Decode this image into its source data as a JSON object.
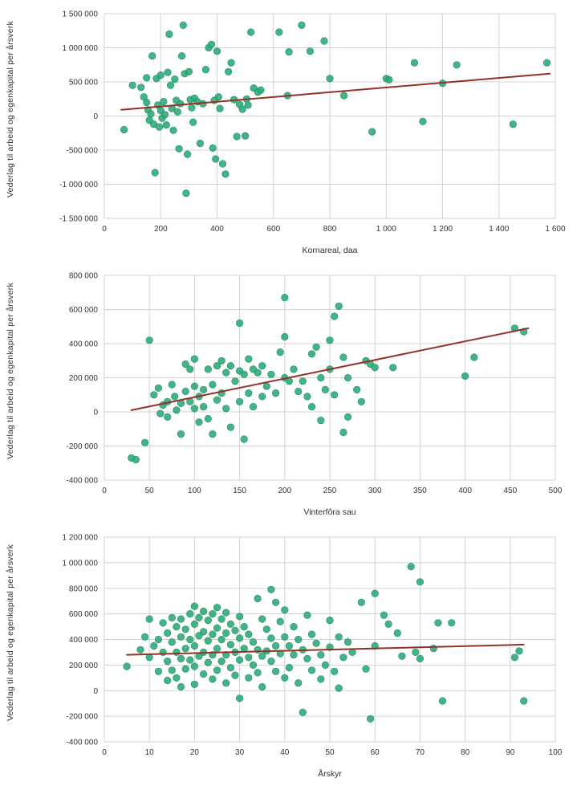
{
  "colors": {
    "point_fill": "#2aa876",
    "point_stroke": "#1f8f63",
    "trend_line": "#943126",
    "grid": "#d3d3d3",
    "axis_text": "#333333"
  },
  "chart_data": [
    {
      "type": "scatter",
      "title": "",
      "xlabel": "Kornareal, daa",
      "ylabel": "Vederlag til arbeid og egenkapital per årsverk",
      "xlim": [
        0,
        1600
      ],
      "ylim": [
        -1500000,
        1500000
      ],
      "xticks": [
        0,
        200,
        400,
        600,
        800,
        1000,
        1200,
        1400,
        1600
      ],
      "yticks": [
        1500000,
        1000000,
        500000,
        0,
        -500000,
        -1000000,
        -1500000
      ],
      "grid": true,
      "legend": "none",
      "trend": {
        "x1": 60,
        "y1": 90000,
        "x2": 1580,
        "y2": 620000
      },
      "points": [
        [
          70,
          -200000
        ],
        [
          100,
          450000
        ],
        [
          130,
          420000
        ],
        [
          140,
          280000
        ],
        [
          150,
          560000
        ],
        [
          150,
          200000
        ],
        [
          155,
          90000
        ],
        [
          160,
          -60000
        ],
        [
          165,
          30000
        ],
        [
          170,
          880000
        ],
        [
          175,
          -120000
        ],
        [
          180,
          -830000
        ],
        [
          185,
          550000
        ],
        [
          190,
          160000
        ],
        [
          195,
          -160000
        ],
        [
          200,
          600000
        ],
        [
          200,
          80000
        ],
        [
          205,
          -30000
        ],
        [
          210,
          210000
        ],
        [
          215,
          20000
        ],
        [
          220,
          -130000
        ],
        [
          225,
          640000
        ],
        [
          230,
          1200000
        ],
        [
          235,
          450000
        ],
        [
          240,
          110000
        ],
        [
          245,
          -210000
        ],
        [
          250,
          540000
        ],
        [
          255,
          230000
        ],
        [
          260,
          60000
        ],
        [
          265,
          -480000
        ],
        [
          270,
          180000
        ],
        [
          275,
          880000
        ],
        [
          280,
          1330000
        ],
        [
          285,
          620000
        ],
        [
          290,
          -1130000
        ],
        [
          295,
          -560000
        ],
        [
          300,
          650000
        ],
        [
          305,
          240000
        ],
        [
          310,
          120000
        ],
        [
          315,
          -90000
        ],
        [
          320,
          260000
        ],
        [
          330,
          210000
        ],
        [
          340,
          -400000
        ],
        [
          350,
          180000
        ],
        [
          360,
          680000
        ],
        [
          370,
          1000000
        ],
        [
          380,
          1050000
        ],
        [
          385,
          -470000
        ],
        [
          390,
          230000
        ],
        [
          395,
          -630000
        ],
        [
          400,
          950000
        ],
        [
          405,
          280000
        ],
        [
          410,
          110000
        ],
        [
          420,
          -700000
        ],
        [
          430,
          -850000
        ],
        [
          440,
          650000
        ],
        [
          450,
          780000
        ],
        [
          460,
          240000
        ],
        [
          470,
          -300000
        ],
        [
          480,
          170000
        ],
        [
          490,
          100000
        ],
        [
          500,
          -290000
        ],
        [
          505,
          250000
        ],
        [
          510,
          160000
        ],
        [
          520,
          1230000
        ],
        [
          530,
          410000
        ],
        [
          545,
          350000
        ],
        [
          555,
          380000
        ],
        [
          620,
          1230000
        ],
        [
          650,
          300000
        ],
        [
          655,
          940000
        ],
        [
          700,
          1330000
        ],
        [
          730,
          950000
        ],
        [
          780,
          1100000
        ],
        [
          800,
          550000
        ],
        [
          850,
          300000
        ],
        [
          950,
          -230000
        ],
        [
          1000,
          550000
        ],
        [
          1010,
          530000
        ],
        [
          1100,
          780000
        ],
        [
          1130,
          -80000
        ],
        [
          1200,
          480000
        ],
        [
          1250,
          750000
        ],
        [
          1450,
          -120000
        ],
        [
          1570,
          780000
        ]
      ]
    },
    {
      "type": "scatter",
      "title": "",
      "xlabel": "Vinterfôra sau",
      "ylabel": "Vederlag til arbeid og egenkapital per årsverk",
      "xlim": [
        0,
        500
      ],
      "ylim": [
        -400000,
        800000
      ],
      "xticks": [
        0,
        50,
        100,
        150,
        200,
        250,
        300,
        350,
        400,
        450,
        500
      ],
      "yticks": [
        800000,
        600000,
        400000,
        200000,
        0,
        -200000,
        -400000
      ],
      "grid": true,
      "legend": "none",
      "trend": {
        "x1": 30,
        "y1": 10000,
        "x2": 470,
        "y2": 490000
      },
      "points": [
        [
          30,
          -270000
        ],
        [
          35,
          -280000
        ],
        [
          45,
          -180000
        ],
        [
          50,
          420000
        ],
        [
          55,
          100000
        ],
        [
          60,
          140000
        ],
        [
          62,
          -10000
        ],
        [
          65,
          40000
        ],
        [
          70,
          60000
        ],
        [
          70,
          -30000
        ],
        [
          75,
          160000
        ],
        [
          78,
          90000
        ],
        [
          80,
          10000
        ],
        [
          85,
          50000
        ],
        [
          85,
          -130000
        ],
        [
          90,
          280000
        ],
        [
          90,
          120000
        ],
        [
          95,
          250000
        ],
        [
          95,
          60000
        ],
        [
          100,
          310000
        ],
        [
          100,
          150000
        ],
        [
          100,
          20000
        ],
        [
          105,
          90000
        ],
        [
          105,
          -60000
        ],
        [
          110,
          130000
        ],
        [
          110,
          30000
        ],
        [
          115,
          250000
        ],
        [
          115,
          -40000
        ],
        [
          120,
          160000
        ],
        [
          120,
          -130000
        ],
        [
          125,
          270000
        ],
        [
          125,
          70000
        ],
        [
          130,
          300000
        ],
        [
          130,
          110000
        ],
        [
          135,
          230000
        ],
        [
          135,
          20000
        ],
        [
          140,
          270000
        ],
        [
          140,
          -90000
        ],
        [
          145,
          180000
        ],
        [
          150,
          520000
        ],
        [
          150,
          240000
        ],
        [
          150,
          60000
        ],
        [
          155,
          220000
        ],
        [
          155,
          -160000
        ],
        [
          160,
          310000
        ],
        [
          160,
          110000
        ],
        [
          165,
          250000
        ],
        [
          165,
          30000
        ],
        [
          170,
          230000
        ],
        [
          175,
          270000
        ],
        [
          175,
          90000
        ],
        [
          180,
          150000
        ],
        [
          185,
          220000
        ],
        [
          190,
          110000
        ],
        [
          195,
          350000
        ],
        [
          200,
          670000
        ],
        [
          200,
          440000
        ],
        [
          200,
          200000
        ],
        [
          205,
          180000
        ],
        [
          210,
          250000
        ],
        [
          215,
          120000
        ],
        [
          220,
          180000
        ],
        [
          225,
          90000
        ],
        [
          230,
          340000
        ],
        [
          230,
          30000
        ],
        [
          235,
          380000
        ],
        [
          240,
          200000
        ],
        [
          240,
          -50000
        ],
        [
          245,
          130000
        ],
        [
          250,
          420000
        ],
        [
          250,
          250000
        ],
        [
          255,
          560000
        ],
        [
          255,
          100000
        ],
        [
          260,
          620000
        ],
        [
          265,
          320000
        ],
        [
          265,
          -120000
        ],
        [
          270,
          200000
        ],
        [
          270,
          -30000
        ],
        [
          280,
          130000
        ],
        [
          285,
          60000
        ],
        [
          290,
          300000
        ],
        [
          295,
          280000
        ],
        [
          300,
          260000
        ],
        [
          320,
          260000
        ],
        [
          400,
          210000
        ],
        [
          410,
          320000
        ],
        [
          455,
          490000
        ],
        [
          465,
          470000
        ]
      ]
    },
    {
      "type": "scatter",
      "title": "",
      "xlabel": "Årskyr",
      "ylabel": "Vederlag til arbeid og egenkapital per årsverk",
      "xlim": [
        0,
        100
      ],
      "ylim": [
        -400000,
        1200000
      ],
      "xticks": [
        0,
        10,
        20,
        30,
        40,
        50,
        60,
        70,
        80,
        90,
        100
      ],
      "yticks": [
        1200000,
        1000000,
        800000,
        600000,
        400000,
        200000,
        0,
        -200000,
        -400000
      ],
      "grid": true,
      "legend": "none",
      "trend": {
        "x1": 5,
        "y1": 280000,
        "x2": 93,
        "y2": 360000
      },
      "points": [
        [
          5,
          190000
        ],
        [
          8,
          320000
        ],
        [
          9,
          420000
        ],
        [
          10,
          560000
        ],
        [
          10,
          260000
        ],
        [
          11,
          350000
        ],
        [
          12,
          400000
        ],
        [
          12,
          150000
        ],
        [
          13,
          530000
        ],
        [
          13,
          300000
        ],
        [
          14,
          450000
        ],
        [
          14,
          230000
        ],
        [
          14,
          80000
        ],
        [
          15,
          570000
        ],
        [
          15,
          380000
        ],
        [
          15,
          160000
        ],
        [
          16,
          500000
        ],
        [
          16,
          300000
        ],
        [
          16,
          100000
        ],
        [
          17,
          560000
        ],
        [
          17,
          420000
        ],
        [
          17,
          250000
        ],
        [
          17,
          30000
        ],
        [
          18,
          480000
        ],
        [
          18,
          330000
        ],
        [
          18,
          170000
        ],
        [
          19,
          600000
        ],
        [
          19,
          400000
        ],
        [
          19,
          240000
        ],
        [
          20,
          660000
        ],
        [
          20,
          520000
        ],
        [
          20,
          350000
        ],
        [
          20,
          190000
        ],
        [
          20,
          50000
        ],
        [
          21,
          570000
        ],
        [
          21,
          430000
        ],
        [
          21,
          270000
        ],
        [
          22,
          620000
        ],
        [
          22,
          460000
        ],
        [
          22,
          300000
        ],
        [
          22,
          130000
        ],
        [
          23,
          550000
        ],
        [
          23,
          390000
        ],
        [
          23,
          220000
        ],
        [
          24,
          600000
        ],
        [
          24,
          440000
        ],
        [
          24,
          280000
        ],
        [
          24,
          90000
        ],
        [
          25,
          650000
        ],
        [
          25,
          490000
        ],
        [
          25,
          330000
        ],
        [
          25,
          160000
        ],
        [
          26,
          560000
        ],
        [
          26,
          400000
        ],
        [
          26,
          230000
        ],
        [
          27,
          610000
        ],
        [
          27,
          450000
        ],
        [
          27,
          280000
        ],
        [
          27,
          60000
        ],
        [
          28,
          520000
        ],
        [
          28,
          360000
        ],
        [
          28,
          180000
        ],
        [
          29,
          470000
        ],
        [
          29,
          300000
        ],
        [
          29,
          120000
        ],
        [
          30,
          580000
        ],
        [
          30,
          410000
        ],
        [
          30,
          240000
        ],
        [
          30,
          -60000
        ],
        [
          31,
          500000
        ],
        [
          31,
          330000
        ],
        [
          32,
          440000
        ],
        [
          32,
          260000
        ],
        [
          32,
          100000
        ],
        [
          33,
          380000
        ],
        [
          33,
          200000
        ],
        [
          34,
          720000
        ],
        [
          34,
          320000
        ],
        [
          34,
          140000
        ],
        [
          35,
          560000
        ],
        [
          35,
          270000
        ],
        [
          35,
          30000
        ],
        [
          36,
          480000
        ],
        [
          36,
          310000
        ],
        [
          37,
          790000
        ],
        [
          37,
          410000
        ],
        [
          37,
          230000
        ],
        [
          38,
          690000
        ],
        [
          38,
          350000
        ],
        [
          38,
          150000
        ],
        [
          39,
          540000
        ],
        [
          39,
          290000
        ],
        [
          40,
          630000
        ],
        [
          40,
          420000
        ],
        [
          40,
          100000
        ],
        [
          41,
          350000
        ],
        [
          41,
          180000
        ],
        [
          42,
          500000
        ],
        [
          42,
          280000
        ],
        [
          43,
          400000
        ],
        [
          43,
          60000
        ],
        [
          44,
          320000
        ],
        [
          44,
          -170000
        ],
        [
          45,
          590000
        ],
        [
          45,
          250000
        ],
        [
          46,
          440000
        ],
        [
          46,
          160000
        ],
        [
          47,
          370000
        ],
        [
          48,
          280000
        ],
        [
          48,
          90000
        ],
        [
          49,
          200000
        ],
        [
          50,
          550000
        ],
        [
          50,
          340000
        ],
        [
          51,
          150000
        ],
        [
          52,
          420000
        ],
        [
          52,
          20000
        ],
        [
          53,
          260000
        ],
        [
          54,
          380000
        ],
        [
          55,
          300000
        ],
        [
          57,
          690000
        ],
        [
          58,
          170000
        ],
        [
          59,
          -220000
        ],
        [
          60,
          760000
        ],
        [
          60,
          350000
        ],
        [
          62,
          590000
        ],
        [
          63,
          520000
        ],
        [
          65,
          450000
        ],
        [
          66,
          270000
        ],
        [
          68,
          970000
        ],
        [
          69,
          300000
        ],
        [
          70,
          850000
        ],
        [
          70,
          250000
        ],
        [
          73,
          330000
        ],
        [
          74,
          530000
        ],
        [
          75,
          -80000
        ],
        [
          77,
          530000
        ],
        [
          91,
          260000
        ],
        [
          92,
          310000
        ],
        [
          93,
          -80000
        ]
      ]
    }
  ]
}
